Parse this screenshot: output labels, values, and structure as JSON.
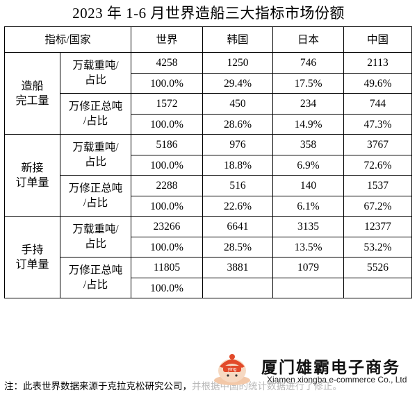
{
  "title": "2023 年 1-6 月世界造船三大指标市场份额",
  "header": {
    "corner": "指标/国家",
    "world": "世界",
    "korea": "韩国",
    "japan": "日本",
    "china": "中国"
  },
  "groups": [
    {
      "label_line1": "造船",
      "label_line2": "完工量",
      "indicators": [
        {
          "label_line1": "万载重吨/",
          "label_line2": "占比",
          "values": [
            "4258",
            "1250",
            "746",
            "2113"
          ],
          "shares": [
            "100.0%",
            "29.4%",
            "17.5%",
            "49.6%"
          ]
        },
        {
          "label_line1": "万修正总吨",
          "label_line2": "/占比",
          "values": [
            "1572",
            "450",
            "234",
            "744"
          ],
          "shares": [
            "100.0%",
            "28.6%",
            "14.9%",
            "47.3%"
          ]
        }
      ]
    },
    {
      "label_line1": "新接",
      "label_line2": "订单量",
      "indicators": [
        {
          "label_line1": "万载重吨/",
          "label_line2": "占比",
          "values": [
            "5186",
            "976",
            "358",
            "3767"
          ],
          "shares": [
            "100.0%",
            "18.8%",
            "6.9%",
            "72.6%"
          ]
        },
        {
          "label_line1": "万修正总吨",
          "label_line2": "/占比",
          "values": [
            "2288",
            "516",
            "140",
            "1537"
          ],
          "shares": [
            "100.0%",
            "22.6%",
            "6.1%",
            "67.2%"
          ]
        }
      ]
    },
    {
      "label_line1": "手持",
      "label_line2": "订单量",
      "indicators": [
        {
          "label_line1": "万载重吨/",
          "label_line2": "占比",
          "values": [
            "23266",
            "6641",
            "3135",
            "12377"
          ],
          "shares": [
            "100.0%",
            "28.5%",
            "13.5%",
            "53.2%"
          ]
        },
        {
          "label_line1": "万修正总吨",
          "label_line2": "/占比",
          "values": [
            "11805",
            "3881",
            "1079",
            "5526"
          ],
          "shares": [
            "100.0%",
            "",
            "",
            ""
          ]
        }
      ]
    }
  ],
  "footnote": {
    "visible": "注：此表世界数据来源于克拉克松研究公司，",
    "faint": "并根据中国的统计数据进行了修正。"
  },
  "watermark": {
    "brand": "厦门雄霸电子商务",
    "sub": "Xiamen xiongba e-commerce Co., Ltd",
    "mascot_text": "ying",
    "mascot_color": "#e24a2a"
  }
}
